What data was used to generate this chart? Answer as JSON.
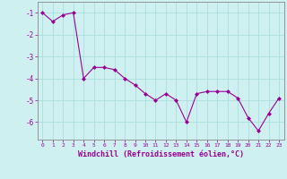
{
  "x": [
    0,
    1,
    2,
    3,
    4,
    5,
    6,
    7,
    8,
    9,
    10,
    11,
    12,
    13,
    14,
    15,
    16,
    17,
    18,
    19,
    20,
    21,
    22,
    23
  ],
  "y": [
    -1.0,
    -1.4,
    -1.1,
    -1.0,
    -4.0,
    -3.5,
    -3.5,
    -3.6,
    -4.0,
    -4.3,
    -4.7,
    -5.0,
    -4.7,
    -5.0,
    -6.0,
    -4.7,
    -4.6,
    -4.6,
    -4.6,
    -4.9,
    -5.8,
    -6.4,
    -5.6,
    -4.9
  ],
  "line_color": "#990099",
  "marker": "D",
  "marker_size": 2.0,
  "background_color": "#cff0f0",
  "grid_color": "#aadddd",
  "xlabel": "Windchill (Refroidissement éolien,°C)",
  "xlabel_color": "#990099",
  "tick_color": "#990099",
  "ylim": [
    -6.8,
    -0.5
  ],
  "xlim": [
    -0.5,
    23.5
  ],
  "yticks": [
    -1,
    -2,
    -3,
    -4,
    -5,
    -6
  ],
  "xticks": [
    0,
    1,
    2,
    3,
    4,
    5,
    6,
    7,
    8,
    9,
    10,
    11,
    12,
    13,
    14,
    15,
    16,
    17,
    18,
    19,
    20,
    21,
    22,
    23
  ],
  "xtick_labels": [
    "0",
    "1",
    "2",
    "3",
    "4",
    "5",
    "6",
    "7",
    "8",
    "9",
    "10",
    "11",
    "12",
    "13",
    "14",
    "15",
    "16",
    "17",
    "18",
    "19",
    "20",
    "21",
    "22",
    "23"
  ],
  "ytick_labels": [
    "-1",
    "-2",
    "-3",
    "-4",
    "-5",
    "-6"
  ],
  "xlabel_fontsize": 6.0,
  "xtick_fontsize": 4.5,
  "ytick_fontsize": 5.5,
  "linewidth": 0.8,
  "spine_color": "#888888"
}
